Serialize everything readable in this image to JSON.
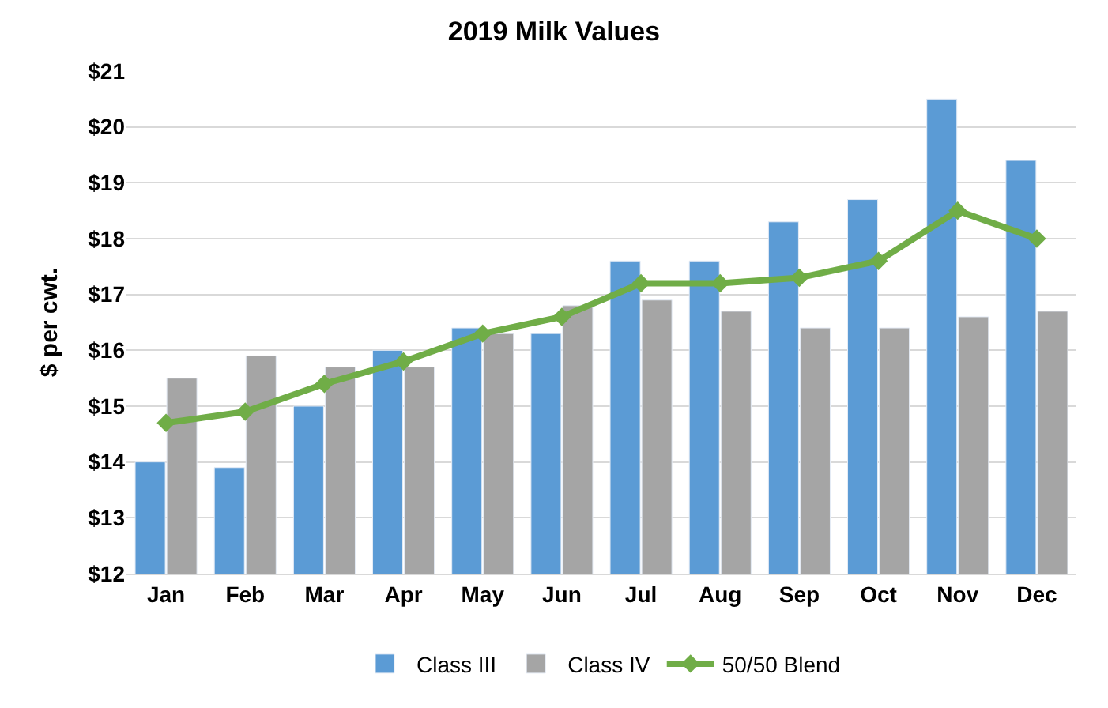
{
  "chart_data": {
    "type": "bar",
    "title": "2019 Milk Values",
    "ylabel": "$ per cwt.",
    "categories": [
      "Jan",
      "Feb",
      "Mar",
      "Apr",
      "May",
      "Jun",
      "Jul",
      "Aug",
      "Sep",
      "Oct",
      "Nov",
      "Dec"
    ],
    "series": [
      {
        "name": "Class III",
        "color": "#5b9bd5",
        "values": [
          14.0,
          13.9,
          15.0,
          16.0,
          16.4,
          16.3,
          17.6,
          17.6,
          18.3,
          18.7,
          20.5,
          19.4
        ]
      },
      {
        "name": "Class IV",
        "color": "#a5a5a5",
        "values": [
          15.5,
          15.9,
          15.7,
          15.7,
          16.3,
          16.8,
          16.9,
          16.7,
          16.4,
          16.4,
          16.6,
          16.7
        ]
      },
      {
        "name": "50/50 Blend",
        "type": "line",
        "color": "#70ad47",
        "marker": "diamond",
        "values": [
          14.7,
          14.9,
          15.4,
          15.8,
          16.3,
          16.6,
          17.2,
          17.2,
          17.3,
          17.6,
          18.5,
          18.0
        ]
      }
    ],
    "ylim": [
      12,
      21
    ],
    "yticks": [
      {
        "value": 12,
        "label": "$12"
      },
      {
        "value": 13,
        "label": "$13"
      },
      {
        "value": 14,
        "label": "$14"
      },
      {
        "value": 15,
        "label": "$15"
      },
      {
        "value": 16,
        "label": "$16"
      },
      {
        "value": 17,
        "label": "$17"
      },
      {
        "value": 18,
        "label": "$18"
      },
      {
        "value": 19,
        "label": "$19"
      },
      {
        "value": 20,
        "label": "$20"
      },
      {
        "value": 21,
        "label": "$21"
      }
    ],
    "grid": "y",
    "legend": "bottom"
  }
}
